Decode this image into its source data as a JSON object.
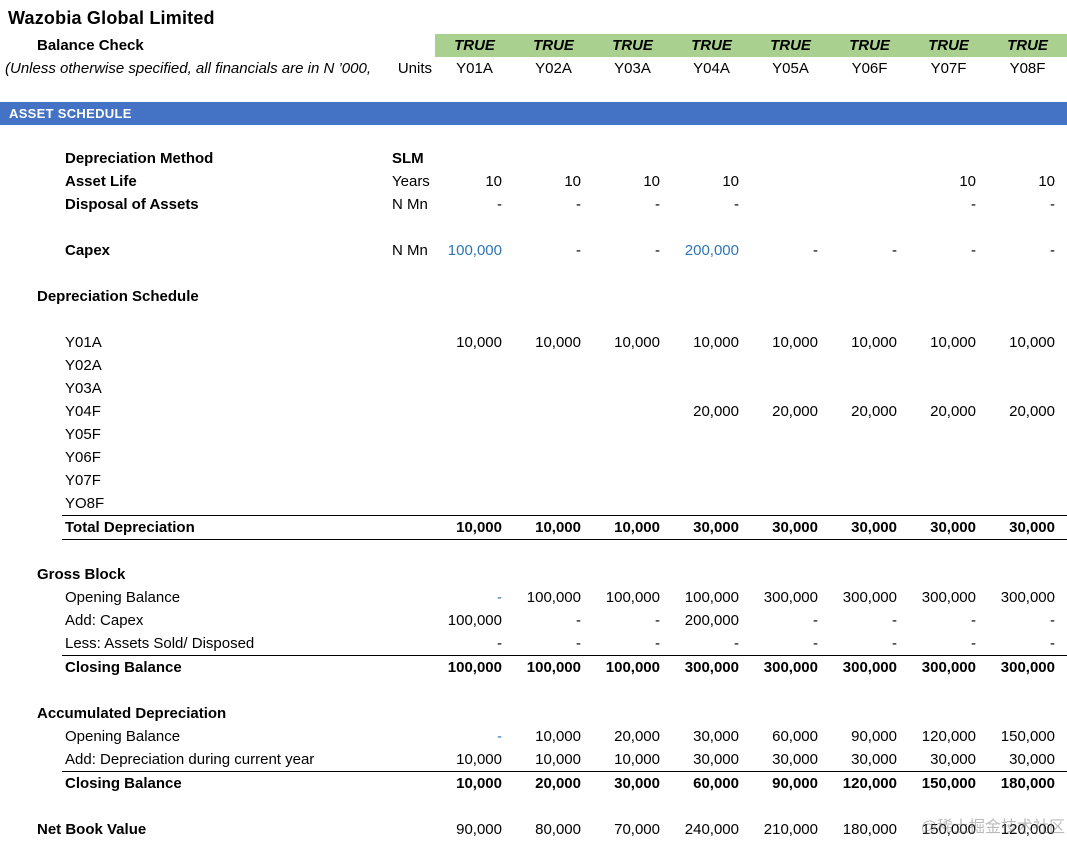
{
  "title": "Wazobia Global Limited",
  "banner": "ASSET SCHEDULE",
  "balance_check": {
    "label": "Balance Check",
    "values": [
      "TRUE",
      "TRUE",
      "TRUE",
      "TRUE",
      "TRUE",
      "TRUE",
      "TRUE",
      "TRUE"
    ]
  },
  "units_row": {
    "note": "(Unless otherwise specified, all financials are in N ’000,",
    "unit_label": "Units",
    "columns": [
      "Y01A",
      "Y02A",
      "Y03A",
      "Y04A",
      "Y05A",
      "Y06F",
      "Y07F",
      "Y08F"
    ]
  },
  "colors": {
    "banner_blue": "#4472C4",
    "check_green": "#A9D08E",
    "input_blue": "#2E75B6"
  },
  "watermark": "@稀土掘金技术社区",
  "grid": {
    "rows": [
      {
        "kind": "data",
        "label": "Depreciation Method",
        "indent": 2,
        "label_bold": true,
        "unit": "SLM",
        "unit_bold": true,
        "values": [
          "",
          "",
          "",
          "",
          "",
          "",
          "",
          ""
        ]
      },
      {
        "kind": "data",
        "label": "Asset Life",
        "indent": 2,
        "label_bold": true,
        "unit": "Years",
        "values": [
          "10",
          "10",
          "10",
          "10",
          "",
          "",
          "10",
          "10"
        ]
      },
      {
        "kind": "data",
        "label": "Disposal of Assets",
        "indent": 2,
        "label_bold": true,
        "unit": "N Mn",
        "values": [
          "-",
          "-",
          "-",
          "-",
          "",
          "",
          "-",
          "-"
        ]
      },
      {
        "kind": "spacer"
      },
      {
        "kind": "data",
        "label": "Capex",
        "indent": 2,
        "label_bold": true,
        "unit": "N Mn",
        "values": [
          "100,000",
          "-",
          "-",
          "200,000",
          "-",
          "-",
          "-",
          "-"
        ],
        "blue_cols": [
          0,
          3
        ]
      },
      {
        "kind": "spacer"
      },
      {
        "kind": "data",
        "label": "Depreciation Schedule",
        "indent": 1,
        "label_bold": true,
        "unit": "",
        "values": [
          "",
          "",
          "",
          "",
          "",
          "",
          "",
          ""
        ]
      },
      {
        "kind": "spacer"
      },
      {
        "kind": "data",
        "label": "Y01A",
        "indent": 2,
        "unit": "",
        "values": [
          "10,000",
          "10,000",
          "10,000",
          "10,000",
          "10,000",
          "10,000",
          "10,000",
          "10,000"
        ]
      },
      {
        "kind": "data",
        "label": "Y02A",
        "indent": 2,
        "unit": "",
        "values": [
          "",
          "",
          "",
          "",
          "",
          "",
          "",
          ""
        ]
      },
      {
        "kind": "data",
        "label": "Y03A",
        "indent": 2,
        "unit": "",
        "values": [
          "",
          "",
          "",
          "",
          "",
          "",
          "",
          ""
        ]
      },
      {
        "kind": "data",
        "label": "Y04F",
        "indent": 2,
        "unit": "",
        "values": [
          "",
          "",
          "",
          "20,000",
          "20,000",
          "20,000",
          "20,000",
          "20,000"
        ]
      },
      {
        "kind": "data",
        "label": "Y05F",
        "indent": 2,
        "unit": "",
        "values": [
          "",
          "",
          "",
          "",
          "",
          "",
          "",
          ""
        ]
      },
      {
        "kind": "data",
        "label": "Y06F",
        "indent": 2,
        "unit": "",
        "values": [
          "",
          "",
          "",
          "",
          "",
          "",
          "",
          ""
        ]
      },
      {
        "kind": "data",
        "label": "Y07F",
        "indent": 2,
        "unit": "",
        "values": [
          "",
          "",
          "",
          "",
          "",
          "",
          "",
          ""
        ]
      },
      {
        "kind": "data",
        "label": "YO8F",
        "indent": 2,
        "unit": "",
        "values": [
          "",
          "",
          "",
          "",
          "",
          "",
          "",
          ""
        ]
      },
      {
        "kind": "data",
        "label": "Total Depreciation",
        "indent": 2,
        "label_bold": true,
        "values_bold": true,
        "rule_above": true,
        "rule_below": true,
        "unit": "",
        "values": [
          "10,000",
          "10,000",
          "10,000",
          "30,000",
          "30,000",
          "30,000",
          "30,000",
          "30,000"
        ]
      },
      {
        "kind": "spacer"
      },
      {
        "kind": "data",
        "label": "Gross Block",
        "indent": 1,
        "label_bold": true,
        "unit": "",
        "values": [
          "",
          "",
          "",
          "",
          "",
          "",
          "",
          ""
        ]
      },
      {
        "kind": "data",
        "label": "Opening Balance",
        "indent": 2,
        "unit": "",
        "values": [
          "-",
          "100,000",
          "100,000",
          "100,000",
          "300,000",
          "300,000",
          "300,000",
          "300,000"
        ],
        "blue_cols": [
          0
        ]
      },
      {
        "kind": "data",
        "label": "Add: Capex",
        "indent": 2,
        "unit": "",
        "values": [
          "100,000",
          "-",
          "-",
          "200,000",
          "-",
          "-",
          "-",
          "-"
        ]
      },
      {
        "kind": "data",
        "label": "Less: Assets Sold/ Disposed",
        "indent": 2,
        "unit": "",
        "values": [
          "-",
          "-",
          "-",
          "-",
          "-",
          "-",
          "-",
          "-"
        ]
      },
      {
        "kind": "data",
        "label": "Closing Balance",
        "indent": 2,
        "label_bold": true,
        "values_bold": true,
        "rule_above": true,
        "unit": "",
        "values": [
          "100,000",
          "100,000",
          "100,000",
          "300,000",
          "300,000",
          "300,000",
          "300,000",
          "300,000"
        ]
      },
      {
        "kind": "spacer"
      },
      {
        "kind": "data",
        "label": "Accumulated Depreciation",
        "indent": 1,
        "label_bold": true,
        "unit": "",
        "values": [
          "",
          "",
          "",
          "",
          "",
          "",
          "",
          ""
        ]
      },
      {
        "kind": "data",
        "label": "Opening Balance",
        "indent": 2,
        "unit": "",
        "values": [
          "-",
          "10,000",
          "20,000",
          "30,000",
          "60,000",
          "90,000",
          "120,000",
          "150,000"
        ],
        "blue_cols": [
          0
        ]
      },
      {
        "kind": "data",
        "label": "Add: Depreciation during current year",
        "indent": 2,
        "unit": "",
        "values": [
          "10,000",
          "10,000",
          "10,000",
          "30,000",
          "30,000",
          "30,000",
          "30,000",
          "30,000"
        ]
      },
      {
        "kind": "data",
        "label": "Closing Balance",
        "indent": 2,
        "label_bold": true,
        "values_bold": true,
        "rule_above": true,
        "unit": "",
        "values": [
          "10,000",
          "20,000",
          "30,000",
          "60,000",
          "90,000",
          "120,000",
          "150,000",
          "180,000"
        ]
      },
      {
        "kind": "spacer"
      },
      {
        "kind": "data",
        "label": "Net Book Value",
        "indent": 1,
        "label_bold": true,
        "unit": "",
        "values": [
          "90,000",
          "80,000",
          "70,000",
          "240,000",
          "210,000",
          "180,000",
          "150,000",
          "120,000"
        ]
      }
    ]
  }
}
